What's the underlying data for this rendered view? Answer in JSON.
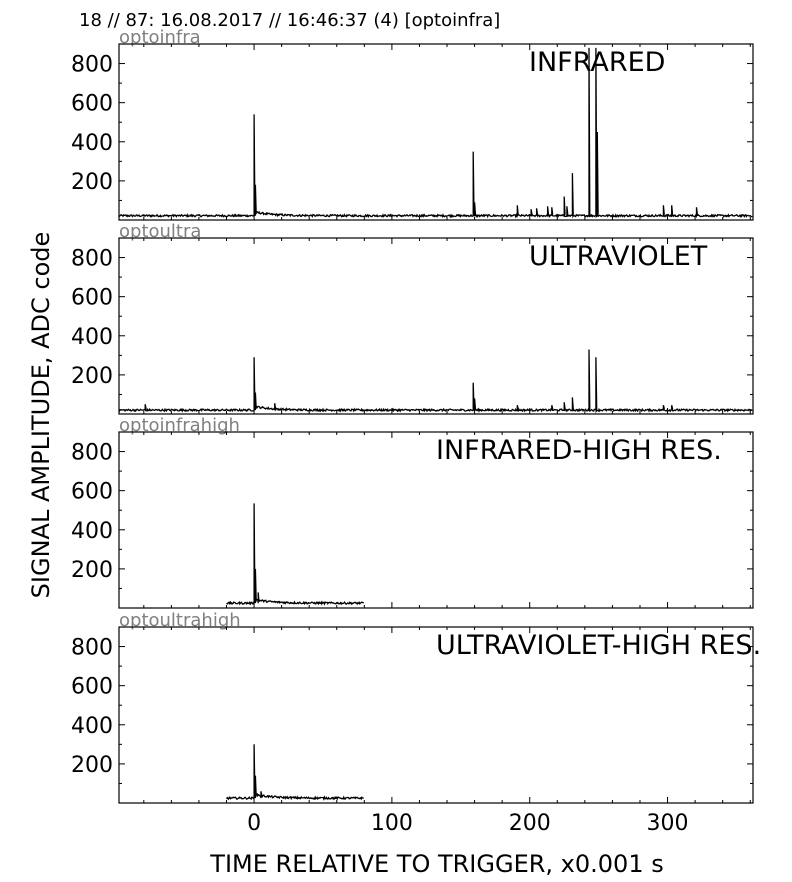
{
  "header": "18 // 87:   16.08.2017 // 16:46:37 (4)  [optoinfra]",
  "xlabel": "TIME RELATIVE TO TRIGGER,   x0.001 s",
  "ylabel": "SIGNAL AMPLITUDE,  ADC code",
  "chart_data": [
    {
      "type": "line",
      "id": "optoinfra",
      "channel": "optoinfra",
      "title": "INFRARED",
      "xlim": [
        -98,
        362
      ],
      "ylim": [
        0,
        900
      ],
      "xticks": [
        0,
        100,
        200,
        300
      ],
      "yticks": [
        200,
        400,
        600,
        800
      ],
      "baseline": 22,
      "x_start": -98,
      "x_end": 362,
      "peaks": [
        {
          "x": 0,
          "y": 540
        },
        {
          "x": 1,
          "y": 180
        },
        {
          "x": 159,
          "y": 350
        },
        {
          "x": 160,
          "y": 90
        },
        {
          "x": 191,
          "y": 75
        },
        {
          "x": 201,
          "y": 55
        },
        {
          "x": 205,
          "y": 60
        },
        {
          "x": 213,
          "y": 70
        },
        {
          "x": 216,
          "y": 65
        },
        {
          "x": 225,
          "y": 120
        },
        {
          "x": 227,
          "y": 70
        },
        {
          "x": 231,
          "y": 240
        },
        {
          "x": 243,
          "y": 880
        },
        {
          "x": 248,
          "y": 880
        },
        {
          "x": 249,
          "y": 450
        },
        {
          "x": 297,
          "y": 75
        },
        {
          "x": 303,
          "y": 75
        },
        {
          "x": 321,
          "y": 65
        }
      ]
    },
    {
      "type": "line",
      "id": "optoultra",
      "channel": "optoultra",
      "title": "ULTRAVIOLET",
      "xlim": [
        -98,
        362
      ],
      "ylim": [
        0,
        900
      ],
      "xticks": [
        0,
        100,
        200,
        300
      ],
      "yticks": [
        200,
        400,
        600,
        800
      ],
      "baseline": 20,
      "x_start": -98,
      "x_end": 362,
      "peaks": [
        {
          "x": -79,
          "y": 50
        },
        {
          "x": 0,
          "y": 290
        },
        {
          "x": 1,
          "y": 110
        },
        {
          "x": 15,
          "y": 55
        },
        {
          "x": 159,
          "y": 160
        },
        {
          "x": 160,
          "y": 80
        },
        {
          "x": 191,
          "y": 45
        },
        {
          "x": 216,
          "y": 45
        },
        {
          "x": 225,
          "y": 60
        },
        {
          "x": 231,
          "y": 85
        },
        {
          "x": 243,
          "y": 330
        },
        {
          "x": 248,
          "y": 290
        },
        {
          "x": 297,
          "y": 45
        },
        {
          "x": 303,
          "y": 45
        }
      ]
    },
    {
      "type": "line",
      "id": "optoinfrahigh",
      "channel": "optoinfrahigh",
      "title": "INFRARED-HIGH RES.",
      "xlim": [
        -98,
        362
      ],
      "ylim": [
        0,
        900
      ],
      "xticks": [
        0,
        100,
        200,
        300
      ],
      "yticks": [
        200,
        400,
        600,
        800
      ],
      "baseline": 25,
      "x_start": -20,
      "x_end": 80,
      "peaks": [
        {
          "x": 0,
          "y": 535
        },
        {
          "x": 1,
          "y": 200
        },
        {
          "x": 3,
          "y": 80
        }
      ]
    },
    {
      "type": "line",
      "id": "optoultrahigh",
      "channel": "optoultrahigh",
      "title": "ULTRAVIOLET-HIGH RES.",
      "xlim": [
        -98,
        362
      ],
      "ylim": [
        0,
        900
      ],
      "xticks": [
        0,
        100,
        200,
        300
      ],
      "yticks": [
        200,
        400,
        600,
        800
      ],
      "baseline": 25,
      "x_start": -20,
      "x_end": 80,
      "peaks": [
        {
          "x": 0,
          "y": 300
        },
        {
          "x": 1,
          "y": 140
        },
        {
          "x": 5,
          "y": 60
        }
      ]
    }
  ]
}
